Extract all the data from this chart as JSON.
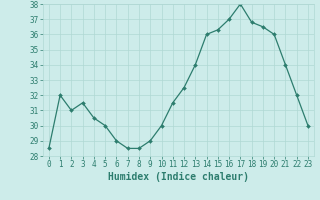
{
  "x": [
    0,
    1,
    2,
    3,
    4,
    5,
    6,
    7,
    8,
    9,
    10,
    11,
    12,
    13,
    14,
    15,
    16,
    17,
    18,
    19,
    20,
    21,
    22,
    23
  ],
  "y": [
    28.5,
    32.0,
    31.0,
    31.5,
    30.5,
    30.0,
    29.0,
    28.5,
    28.5,
    29.0,
    30.0,
    31.5,
    32.5,
    34.0,
    36.0,
    36.3,
    37.0,
    38.0,
    36.8,
    36.5,
    36.0,
    34.0,
    32.0,
    30.0
  ],
  "xlabel": "Humidex (Indice chaleur)",
  "ylim": [
    28,
    38
  ],
  "xlim_left": -0.5,
  "xlim_right": 23.5,
  "yticks": [
    28,
    29,
    30,
    31,
    32,
    33,
    34,
    35,
    36,
    37,
    38
  ],
  "xticks": [
    0,
    1,
    2,
    3,
    4,
    5,
    6,
    7,
    8,
    9,
    10,
    11,
    12,
    13,
    14,
    15,
    16,
    17,
    18,
    19,
    20,
    21,
    22,
    23
  ],
  "line_color": "#2d7d6e",
  "marker_color": "#2d7d6e",
  "bg_color": "#cdecea",
  "grid_color": "#b0d8d4",
  "font_color": "#2d7d6e",
  "tick_fontsize": 5.5,
  "xlabel_fontsize": 7.0
}
